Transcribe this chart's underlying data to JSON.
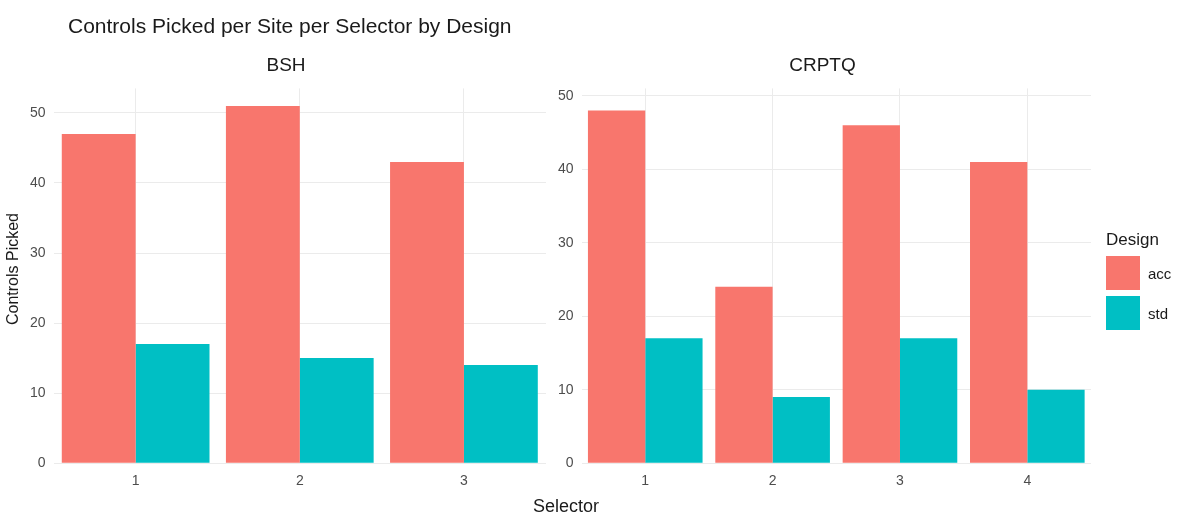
{
  "chart_data": [
    {
      "type": "bar",
      "title": "Controls Picked per Site per Selector by Design",
      "subtitle": "BSH",
      "xlabel": "Selector",
      "ylabel": "Controls Picked",
      "legend_title": "Design",
      "categories": [
        "1",
        "2",
        "3"
      ],
      "series": [
        {
          "name": "acc",
          "color": "#f8766d",
          "values": [
            47,
            51,
            43
          ]
        },
        {
          "name": "std",
          "color": "#00bfc4",
          "values": [
            17,
            15,
            14
          ]
        }
      ],
      "ylim": [
        0,
        53.5
      ],
      "yticks": [
        0,
        10,
        20,
        30,
        40,
        50
      ],
      "grid": true,
      "legend": "right"
    },
    {
      "type": "bar",
      "subtitle": "CRPTQ",
      "categories": [
        "1",
        "2",
        "3",
        "4"
      ],
      "series": [
        {
          "color": "#f8766d",
          "values": [
            48,
            24,
            46,
            41
          ]
        },
        {
          "color": "#00bfc4",
          "values": [
            17,
            9,
            17,
            10
          ]
        }
      ],
      "ylim": [
        0,
        51
      ],
      "yticks": [
        0,
        10,
        20,
        30,
        40,
        50
      ],
      "grid": true
    }
  ]
}
